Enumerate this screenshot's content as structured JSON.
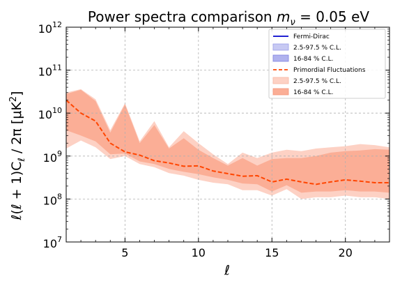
{
  "chart_data": {
    "type": "area",
    "title": "Power spectra comparison m_ν = 0.05 eV",
    "title_parts": {
      "prefix": "Power spectra comparison ",
      "m": "m",
      "sub": "ν",
      "suffix": " = 0.05 eV"
    },
    "xlabel": "ℓ",
    "ylabel": "ℓ(ℓ + 1)C_ℓ / 2π [μK²]",
    "ylabel_parts": {
      "a": "ℓ(ℓ + 1)C",
      "sub": "ℓ",
      "b": " / 2π [μK",
      "sup": "2",
      "c": "]"
    },
    "xlim": [
      1,
      23
    ],
    "ylim": [
      10000000.0,
      1000000000000.0
    ],
    "yscale": "log",
    "grid": true,
    "legend_position": "top-right",
    "xticks": [
      5,
      10,
      15,
      20
    ],
    "xtick_labels": [
      "5",
      "10",
      "15",
      "20"
    ],
    "yticks": [
      {
        "value": 10000000.0,
        "base": "10",
        "exp": "7"
      },
      {
        "value": 100000000.0,
        "base": "10",
        "exp": "8"
      },
      {
        "value": 1000000000.0,
        "base": "10",
        "exp": "9"
      },
      {
        "value": 10000000000.0,
        "base": "10",
        "exp": "10"
      },
      {
        "value": 100000000000.0,
        "base": "10",
        "exp": "11"
      },
      {
        "value": 1000000000000.0,
        "base": "10",
        "exp": "12"
      }
    ],
    "x": [
      1,
      2,
      3,
      4,
      5,
      6,
      7,
      8,
      9,
      10,
      11,
      12,
      13,
      14,
      15,
      16,
      17,
      18,
      19,
      20,
      21,
      22,
      23
    ],
    "series": [
      {
        "name": "Primordial Fluctuations",
        "color": "#ff4500",
        "median": [
          20000000000.0,
          10000000000.0,
          6500000000.0,
          2000000000.0,
          1250000000.0,
          1050000000.0,
          780000000.0,
          690000000.0,
          580000000.0,
          590000000.0,
          450000000.0,
          390000000.0,
          340000000.0,
          350000000.0,
          250000000.0,
          290000000.0,
          250000000.0,
          220000000.0,
          250000000.0,
          280000000.0,
          260000000.0,
          240000000.0,
          240000000.0
        ],
        "band_95": {
          "label": "2.5-97.5 % C.L.",
          "upper": [
            30000000000.0,
            36000000000.0,
            21000000000.0,
            4000000000.0,
            17000000000.0,
            2200000000.0,
            6500000000.0,
            1600000000.0,
            3800000000.0,
            2000000000.0,
            1100000000.0,
            650000000.0,
            1200000000.0,
            900000000.0,
            1200000000.0,
            1400000000.0,
            1300000000.0,
            1500000000.0,
            1600000000.0,
            1700000000.0,
            1900000000.0,
            1800000000.0,
            1600000000.0
          ],
          "lower": [
            1500000000.0,
            2300000000.0,
            1600000000.0,
            850000000.0,
            1000000000.0,
            650000000.0,
            550000000.0,
            400000000.0,
            350000000.0,
            280000000.0,
            240000000.0,
            220000000.0,
            160000000.0,
            160000000.0,
            120000000.0,
            170000000.0,
            100000000.0,
            110000000.0,
            110000000.0,
            120000000.0,
            110000000.0,
            110000000.0,
            100000000.0
          ]
        },
        "band_68": {
          "label": "16-84 % C.L.",
          "upper": [
            28000000000.0,
            35000000000.0,
            19000000000.0,
            3500000000.0,
            16000000000.0,
            2000000000.0,
            5300000000.0,
            1500000000.0,
            2600000000.0,
            1400000000.0,
            900000000.0,
            600000000.0,
            900000000.0,
            600000000.0,
            850000000.0,
            900000000.0,
            900000000.0,
            1000000000.0,
            1200000000.0,
            1300000000.0,
            1350000000.0,
            1450000000.0,
            1400000000.0
          ],
          "lower": [
            4000000000.0,
            3000000000.0,
            2200000000.0,
            1100000000.0,
            1150000000.0,
            750000000.0,
            650000000.0,
            500000000.0,
            430000000.0,
            380000000.0,
            320000000.0,
            280000000.0,
            230000000.0,
            220000000.0,
            150000000.0,
            210000000.0,
            140000000.0,
            150000000.0,
            150000000.0,
            160000000.0,
            150000000.0,
            150000000.0,
            140000000.0
          ]
        }
      }
    ],
    "legend": [
      {
        "label": "Fermi-Dirac",
        "kind": "line",
        "color": "#0000cc",
        "dashed": false
      },
      {
        "label": "2.5-97.5 % C.L.",
        "kind": "patch",
        "color": "#c7c9f3",
        "edge": "#9a9de8"
      },
      {
        "label": "16-84 % C.L.",
        "kind": "patch",
        "color": "#b0b2ee",
        "edge": "#7e81e0"
      },
      {
        "label": "Primordial Fluctuations",
        "kind": "line",
        "color": "#ff4500",
        "dashed": true
      },
      {
        "label": "2.5-97.5 % C.L.",
        "kind": "patch",
        "color": "#fdd1c4",
        "edge": "#f7b6a3"
      },
      {
        "label": "16-84 % C.L.",
        "kind": "patch",
        "color": "#fbae96",
        "edge": "#f5957a"
      }
    ],
    "colors": {
      "band_95": "#fdd1c4",
      "band_68": "#fbae96",
      "median": "#ff4500",
      "grid": "#b0b0b0"
    }
  }
}
